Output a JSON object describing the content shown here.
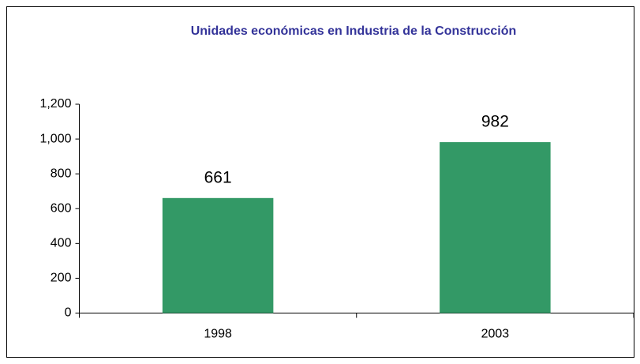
{
  "chart_data": {
    "type": "bar",
    "title": "Unidades económicas en Industria de la Construcción",
    "categories": [
      "1998",
      "2003"
    ],
    "values": [
      661,
      982
    ],
    "color": "#339966",
    "ylim": [
      0,
      1200
    ],
    "yticks": [
      0,
      200,
      400,
      600,
      800,
      {
        "value": 1000,
        "label": "1,000"
      },
      {
        "value": 1200,
        "label": "1,200"
      }
    ],
    "grid": false
  }
}
